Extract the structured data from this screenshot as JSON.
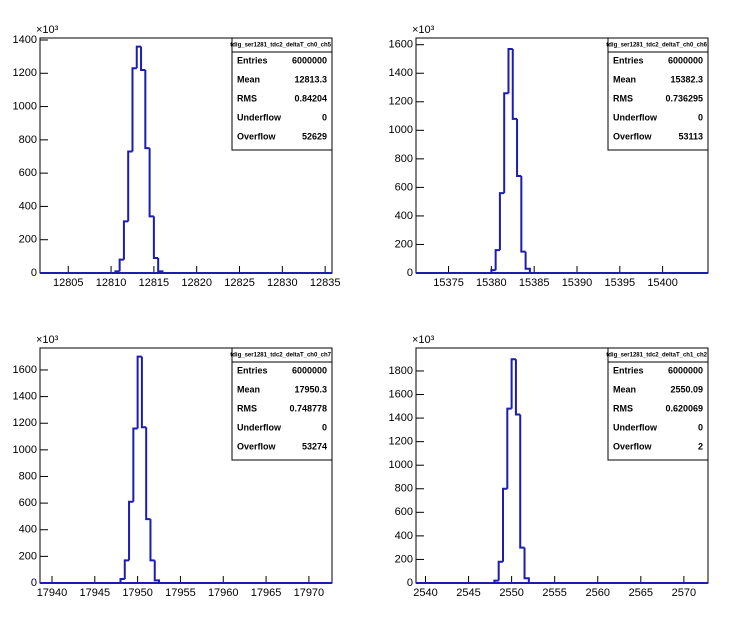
{
  "chart_data": [
    {
      "type": "histogram",
      "color": "#1c1cb0",
      "y_multiplier": "×10³",
      "bins": [
        12810.5,
        12811,
        12811.5,
        12812,
        12812.5,
        12813,
        12813.5,
        12814,
        12814.5,
        12815,
        12815.5,
        12816
      ],
      "counts": [
        10,
        80,
        310,
        730,
        1230,
        1360,
        1220,
        750,
        340,
        90,
        10
      ],
      "xlim": [
        12801.7,
        12835.8
      ],
      "ylim": [
        0,
        1412
      ],
      "xticks": [
        12805,
        12810,
        12815,
        12820,
        12825,
        12830,
        12835
      ],
      "yticks": [
        0,
        200,
        400,
        600,
        800,
        1000,
        1200,
        1400
      ],
      "stats": {
        "title": "tdig_ser1281_tdc2_deltaT_ch0_ch5",
        "rows": [
          {
            "label": "Entries",
            "value": 6000000
          },
          {
            "label": "Mean",
            "value": 12813.3
          },
          {
            "label": "RMS",
            "value": 0.84204
          },
          {
            "label": "Underflow",
            "value": 0
          },
          {
            "label": "Overflow",
            "value": 52629
          }
        ]
      }
    },
    {
      "type": "histogram",
      "color": "#1c1cb0",
      "y_multiplier": "×10³",
      "bins": [
        15380,
        15380.5,
        15381,
        15381.5,
        15382,
        15382.5,
        15383,
        15383.5,
        15384,
        15384.5
      ],
      "counts": [
        20,
        160,
        560,
        1260,
        1570,
        1080,
        680,
        150,
        30
      ],
      "xlim": [
        15371.2,
        15405.3
      ],
      "ylim": [
        0,
        1647
      ],
      "xticks": [
        15375,
        15380,
        15385,
        15390,
        15395,
        15400
      ],
      "yticks": [
        0,
        200,
        400,
        600,
        800,
        1000,
        1200,
        1400,
        1600
      ],
      "stats": {
        "title": "tdig_ser1281_tdc2_deltaT_ch0_ch6",
        "rows": [
          {
            "label": "Entries",
            "value": 6000000
          },
          {
            "label": "Mean",
            "value": 15382.3
          },
          {
            "label": "RMS",
            "value": 0.736295
          },
          {
            "label": "Underflow",
            "value": 0
          },
          {
            "label": "Overflow",
            "value": 53113
          }
        ]
      }
    },
    {
      "type": "histogram",
      "color": "#1c1cb0",
      "y_multiplier": "×10³",
      "bins": [
        17948,
        17948.5,
        17949,
        17949.5,
        17950,
        17950.5,
        17951,
        17951.5,
        17952,
        17952.5
      ],
      "counts": [
        30,
        170,
        610,
        1160,
        1700,
        1170,
        480,
        170,
        20
      ],
      "xlim": [
        17938.6,
        17972.7
      ],
      "ylim": [
        0,
        1765
      ],
      "xticks": [
        17940,
        17945,
        17950,
        17955,
        17960,
        17965,
        17970
      ],
      "yticks": [
        0,
        200,
        400,
        600,
        800,
        1000,
        1200,
        1400,
        1600
      ],
      "stats": {
        "title": "tdig_ser1281_tdc2_deltaT_ch0_ch7",
        "rows": [
          {
            "label": "Entries",
            "value": 6000000
          },
          {
            "label": "Mean",
            "value": 17950.3
          },
          {
            "label": "RMS",
            "value": 0.748778
          },
          {
            "label": "Underflow",
            "value": 0
          },
          {
            "label": "Overflow",
            "value": 53274
          }
        ]
      }
    },
    {
      "type": "histogram",
      "color": "#1c1cb0",
      "y_multiplier": "×10³",
      "bins": [
        2548,
        2548.5,
        2549,
        2549.5,
        2550,
        2550.5,
        2551,
        2551.5,
        2552
      ],
      "counts": [
        20,
        180,
        800,
        1480,
        1900,
        1430,
        300,
        40
      ],
      "xlim": [
        2538.9,
        2572.8
      ],
      "ylim": [
        0,
        1995
      ],
      "xticks": [
        2540,
        2545,
        2550,
        2555,
        2560,
        2565,
        2570
      ],
      "yticks": [
        0,
        200,
        400,
        600,
        800,
        1000,
        1200,
        1400,
        1600,
        1800
      ],
      "stats": {
        "title": "tdig_ser1281_tdc2_deltaT_ch1_ch2",
        "rows": [
          {
            "label": "Entries",
            "value": 6000000
          },
          {
            "label": "Mean",
            "value": 2550.09
          },
          {
            "label": "RMS",
            "value": 0.620069
          },
          {
            "label": "Underflow",
            "value": 0
          },
          {
            "label": "Overflow",
            "value": 2
          }
        ]
      }
    }
  ]
}
